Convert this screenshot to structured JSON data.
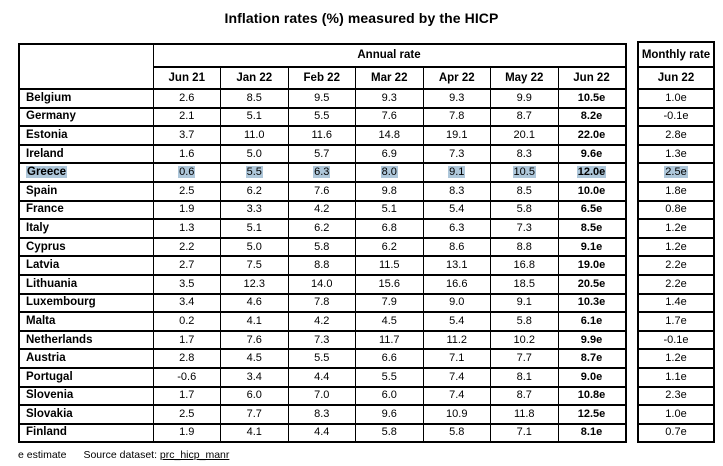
{
  "title": "Inflation rates (%) measured by the HICP",
  "colors": {
    "highlight": "#aec7da",
    "border": "#000000",
    "background": "#ffffff"
  },
  "table": {
    "annual_group_header": "Annual rate",
    "monthly_group_header": "Monthly rate",
    "annual_columns": [
      "Jun 21",
      "Jan 22",
      "Feb 22",
      "Mar 22",
      "Apr 22",
      "May 22",
      "Jun 22"
    ],
    "monthly_column": "Jun 22",
    "rows": [
      {
        "country": "Belgium",
        "annual": [
          "2.6",
          "8.5",
          "9.5",
          "9.3",
          "9.3",
          "9.9",
          "10.5e"
        ],
        "monthly": "1.0e",
        "highlight": false
      },
      {
        "country": "Germany",
        "annual": [
          "2.1",
          "5.1",
          "5.5",
          "7.6",
          "7.8",
          "8.7",
          "8.2e"
        ],
        "monthly": "-0.1e",
        "highlight": false
      },
      {
        "country": "Estonia",
        "annual": [
          "3.7",
          "11.0",
          "11.6",
          "14.8",
          "19.1",
          "20.1",
          "22.0e"
        ],
        "monthly": "2.8e",
        "highlight": false
      },
      {
        "country": "Ireland",
        "annual": [
          "1.6",
          "5.0",
          "5.7",
          "6.9",
          "7.3",
          "8.3",
          "9.6e"
        ],
        "monthly": "1.3e",
        "highlight": false
      },
      {
        "country": "Greece",
        "annual": [
          "0.6",
          "5.5",
          "6.3",
          "8.0",
          "9.1",
          "10.5",
          "12.0e"
        ],
        "monthly": "2.5e",
        "highlight": true
      },
      {
        "country": "Spain",
        "annual": [
          "2.5",
          "6.2",
          "7.6",
          "9.8",
          "8.3",
          "8.5",
          "10.0e"
        ],
        "monthly": "1.8e",
        "highlight": false
      },
      {
        "country": "France",
        "annual": [
          "1.9",
          "3.3",
          "4.2",
          "5.1",
          "5.4",
          "5.8",
          "6.5e"
        ],
        "monthly": "0.8e",
        "highlight": false
      },
      {
        "country": "Italy",
        "annual": [
          "1.3",
          "5.1",
          "6.2",
          "6.8",
          "6.3",
          "7.3",
          "8.5e"
        ],
        "monthly": "1.2e",
        "highlight": false
      },
      {
        "country": "Cyprus",
        "annual": [
          "2.2",
          "5.0",
          "5.8",
          "6.2",
          "8.6",
          "8.8",
          "9.1e"
        ],
        "monthly": "1.2e",
        "highlight": false
      },
      {
        "country": "Latvia",
        "annual": [
          "2.7",
          "7.5",
          "8.8",
          "11.5",
          "13.1",
          "16.8",
          "19.0e"
        ],
        "monthly": "2.2e",
        "highlight": false
      },
      {
        "country": "Lithuania",
        "annual": [
          "3.5",
          "12.3",
          "14.0",
          "15.6",
          "16.6",
          "18.5",
          "20.5e"
        ],
        "monthly": "2.2e",
        "highlight": false
      },
      {
        "country": "Luxembourg",
        "annual": [
          "3.4",
          "4.6",
          "7.8",
          "7.9",
          "9.0",
          "9.1",
          "10.3e"
        ],
        "monthly": "1.4e",
        "highlight": false
      },
      {
        "country": "Malta",
        "annual": [
          "0.2",
          "4.1",
          "4.2",
          "4.5",
          "5.4",
          "5.8",
          "6.1e"
        ],
        "monthly": "1.7e",
        "highlight": false
      },
      {
        "country": "Netherlands",
        "annual": [
          "1.7",
          "7.6",
          "7.3",
          "11.7",
          "11.2",
          "10.2",
          "9.9e"
        ],
        "monthly": "-0.1e",
        "highlight": false
      },
      {
        "country": "Austria",
        "annual": [
          "2.8",
          "4.5",
          "5.5",
          "6.6",
          "7.1",
          "7.7",
          "8.7e"
        ],
        "monthly": "1.2e",
        "highlight": false
      },
      {
        "country": "Portugal",
        "annual": [
          "-0.6",
          "3.4",
          "4.4",
          "5.5",
          "7.4",
          "8.1",
          "9.0e"
        ],
        "monthly": "1.1e",
        "highlight": false
      },
      {
        "country": "Slovenia",
        "annual": [
          "1.7",
          "6.0",
          "7.0",
          "6.0",
          "7.4",
          "8.7",
          "10.8e"
        ],
        "monthly": "2.3e",
        "highlight": false
      },
      {
        "country": "Slovakia",
        "annual": [
          "2.5",
          "7.7",
          "8.3",
          "9.6",
          "10.9",
          "11.8",
          "12.5e"
        ],
        "monthly": "1.0e",
        "highlight": false
      },
      {
        "country": "Finland",
        "annual": [
          "1.9",
          "4.1",
          "4.4",
          "5.8",
          "5.8",
          "7.1",
          "8.1e"
        ],
        "monthly": "0.7e",
        "highlight": false
      }
    ]
  },
  "footer": {
    "note": "e estimate",
    "source_label": "Source dataset:",
    "source_link": "prc_hicp_manr"
  }
}
